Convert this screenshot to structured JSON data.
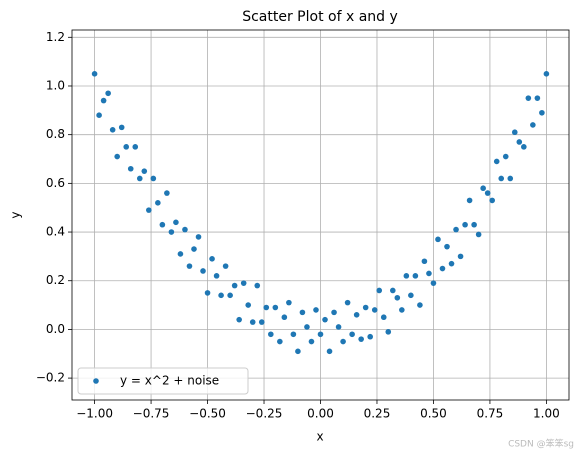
{
  "chart_data": {
    "type": "scatter",
    "title": "Scatter Plot of x and y",
    "x_label": "x",
    "y_label": "y",
    "x": [
      -1.0,
      -0.98,
      -0.96,
      -0.94,
      -0.92,
      -0.9,
      -0.88,
      -0.86,
      -0.84,
      -0.82,
      -0.8,
      -0.78,
      -0.76,
      -0.74,
      -0.72,
      -0.7,
      -0.68,
      -0.66,
      -0.64,
      -0.62,
      -0.6,
      -0.58,
      -0.56,
      -0.54,
      -0.52,
      -0.5,
      -0.48,
      -0.46,
      -0.44,
      -0.42,
      -0.4,
      -0.38,
      -0.36,
      -0.34,
      -0.32,
      -0.3,
      -0.28,
      -0.26,
      -0.24,
      -0.22,
      -0.2,
      -0.18,
      -0.16,
      -0.14,
      -0.12,
      -0.1,
      -0.08,
      -0.06,
      -0.04,
      -0.02,
      0,
      0.02,
      0.04,
      0.06,
      0.08,
      0.1,
      0.12,
      0.14,
      0.16,
      0.18,
      0.2,
      0.22,
      0.24,
      0.26,
      0.28,
      0.3,
      0.32,
      0.34,
      0.36,
      0.38,
      0.4,
      0.42,
      0.44,
      0.46,
      0.48,
      0.5,
      0.52,
      0.54,
      0.56,
      0.58,
      0.6,
      0.62,
      0.64,
      0.66,
      0.68,
      0.7,
      0.72,
      0.74,
      0.76,
      0.78,
      0.8,
      0.82,
      0.84,
      0.86,
      0.88,
      0.9,
      0.92,
      0.94,
      0.96,
      0.98,
      1.0
    ],
    "series": [
      {
        "name": "y = x^2 + noise",
        "color": "#1f77b4",
        "values": [
          1.05,
          0.88,
          0.94,
          0.97,
          0.82,
          0.71,
          0.83,
          0.75,
          0.66,
          0.75,
          0.62,
          0.65,
          0.49,
          0.62,
          0.52,
          0.43,
          0.56,
          0.4,
          0.44,
          0.31,
          0.41,
          0.26,
          0.33,
          0.38,
          0.24,
          0.15,
          0.29,
          0.22,
          0.14,
          0.26,
          0.14,
          0.18,
          0.04,
          0.19,
          0.1,
          0.03,
          0.18,
          0.03,
          0.09,
          -0.02,
          0.09,
          -0.05,
          0.05,
          0.11,
          -0.02,
          -0.09,
          0.07,
          0.01,
          -0.05,
          0.08,
          -0.02,
          0.04,
          -0.09,
          0.07,
          0.01,
          -0.05,
          0.11,
          -0.02,
          0.06,
          -0.04,
          0.09,
          -0.03,
          0.08,
          0.16,
          0.05,
          -0.01,
          0.16,
          0.13,
          0.08,
          0.22,
          0.14,
          0.22,
          0.1,
          0.28,
          0.23,
          0.19,
          0.37,
          0.25,
          0.34,
          0.27,
          0.41,
          0.3,
          0.43,
          0.53,
          0.43,
          0.39,
          0.58,
          0.56,
          0.53,
          0.69,
          0.62,
          0.71,
          0.62,
          0.81,
          0.77,
          0.75,
          0.95,
          0.84,
          0.95,
          0.89,
          1.05
        ]
      }
    ],
    "xlim": [
      -1.1,
      1.1
    ],
    "ylim": [
      -0.29,
      1.23
    ],
    "xticks": [
      {
        "value": -1.0,
        "label": "−1.00"
      },
      {
        "value": -0.75,
        "label": "−0.75"
      },
      {
        "value": -0.5,
        "label": "−0.50"
      },
      {
        "value": -0.25,
        "label": "−0.25"
      },
      {
        "value": 0,
        "label": "0.00"
      },
      {
        "value": 0.25,
        "label": "0.25"
      },
      {
        "value": 0.5,
        "label": "0.50"
      },
      {
        "value": 0.75,
        "label": "0.75"
      },
      {
        "value": 1.0,
        "label": "1.00"
      }
    ],
    "yticks": [
      {
        "value": -0.2,
        "label": "−0.2"
      },
      {
        "value": 0,
        "label": "0.0"
      },
      0.2,
      0.4,
      0.6,
      0.8,
      {
        "value": 1.0,
        "label": "1.0"
      },
      1.2
    ],
    "grid": true,
    "legend": "lower left"
  },
  "watermark": "CSDN @笨笨sg"
}
